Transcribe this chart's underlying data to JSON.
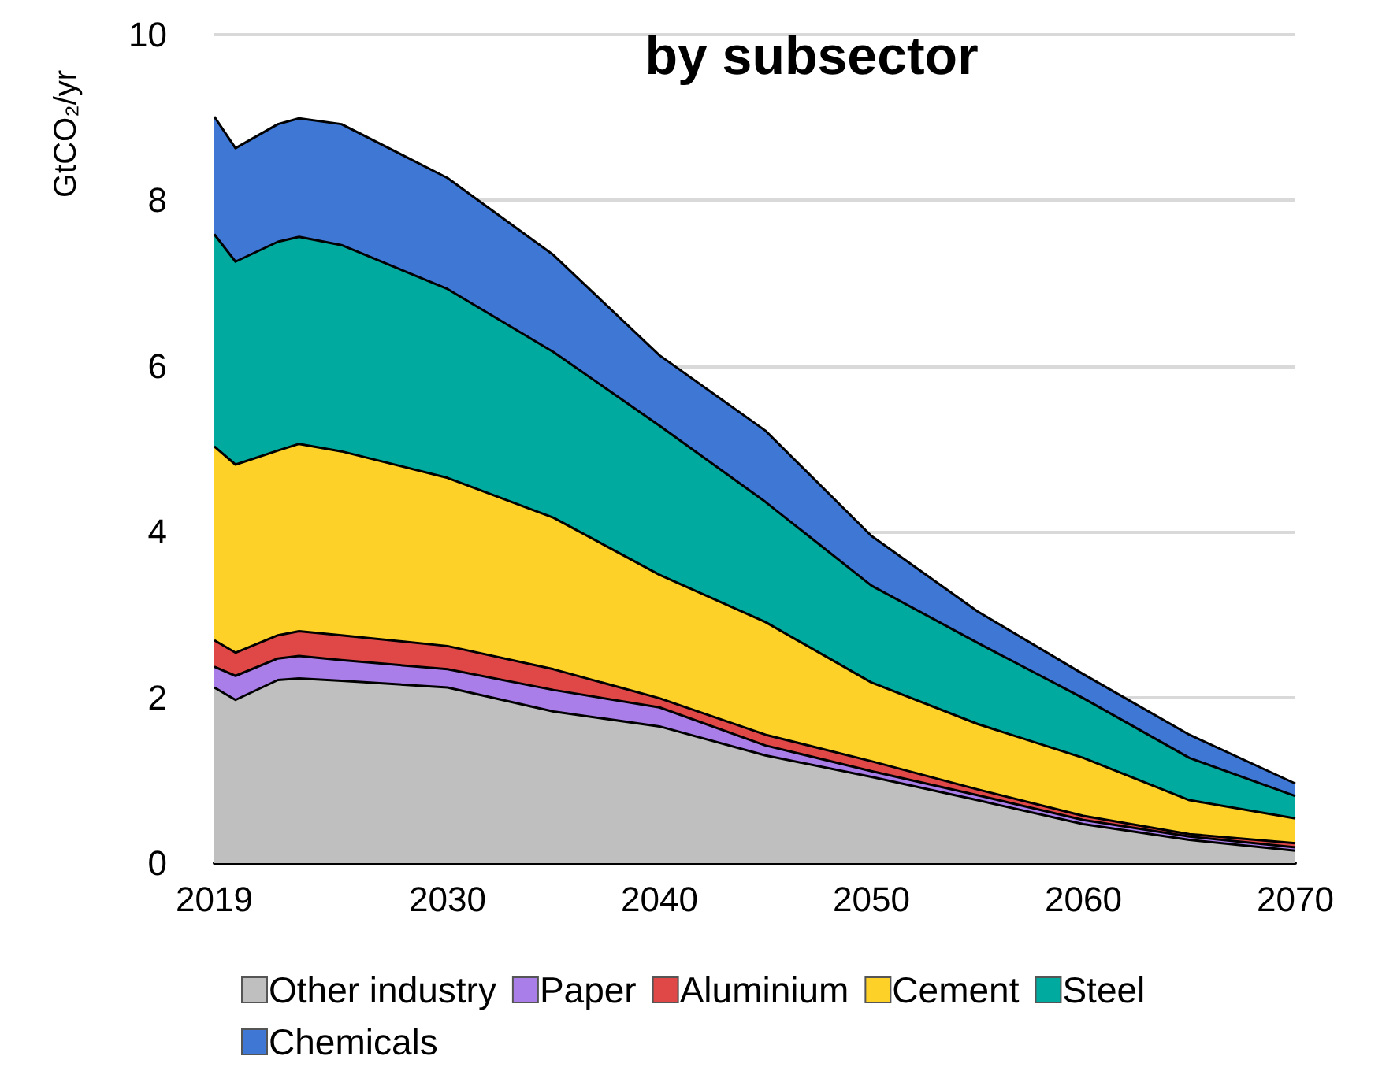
{
  "chart_data": {
    "type": "area",
    "title": "by subsector",
    "ylabel": "GtCO₂/yr",
    "stacked": true,
    "x": [
      2019,
      2020,
      2022,
      2023,
      2025,
      2030,
      2035,
      2040,
      2045,
      2050,
      2055,
      2060,
      2065,
      2070
    ],
    "series": [
      {
        "name": "Other industry",
        "color": "#bfbfbf",
        "values": [
          2.12,
          1.97,
          2.21,
          2.23,
          2.2,
          2.12,
          1.83,
          1.65,
          1.3,
          1.04,
          0.76,
          0.47,
          0.28,
          0.15
        ]
      },
      {
        "name": "Paper",
        "color": "#a97ee8",
        "values": [
          0.25,
          0.29,
          0.26,
          0.27,
          0.25,
          0.22,
          0.26,
          0.23,
          0.12,
          0.07,
          0.06,
          0.05,
          0.04,
          0.04
        ]
      },
      {
        "name": "Aluminium",
        "color": "#e04848",
        "values": [
          0.32,
          0.28,
          0.28,
          0.3,
          0.3,
          0.28,
          0.25,
          0.11,
          0.13,
          0.12,
          0.07,
          0.05,
          0.03,
          0.05
        ]
      },
      {
        "name": "Cement",
        "color": "#fdd128",
        "values": [
          2.34,
          2.27,
          2.23,
          2.26,
          2.22,
          2.03,
          1.83,
          1.49,
          1.36,
          0.95,
          0.79,
          0.7,
          0.41,
          0.3
        ]
      },
      {
        "name": "Steel",
        "color": "#00aa9e",
        "values": [
          2.56,
          2.45,
          2.52,
          2.5,
          2.49,
          2.28,
          2.0,
          1.8,
          1.45,
          1.17,
          0.98,
          0.72,
          0.51,
          0.27
        ]
      },
      {
        "name": "Chemicals",
        "color": "#3f77d4",
        "values": [
          1.42,
          1.37,
          1.42,
          1.43,
          1.46,
          1.34,
          1.17,
          0.85,
          0.86,
          0.6,
          0.38,
          0.29,
          0.28,
          0.15
        ]
      }
    ],
    "xlim": [
      2019,
      2070
    ],
    "xticks": [
      2019,
      2030,
      2040,
      2050,
      2060,
      2070
    ],
    "ylim": [
      0,
      10
    ],
    "yticks": [
      0,
      2,
      4,
      6,
      8,
      10
    ],
    "grid": "y",
    "legend": "bottom"
  }
}
